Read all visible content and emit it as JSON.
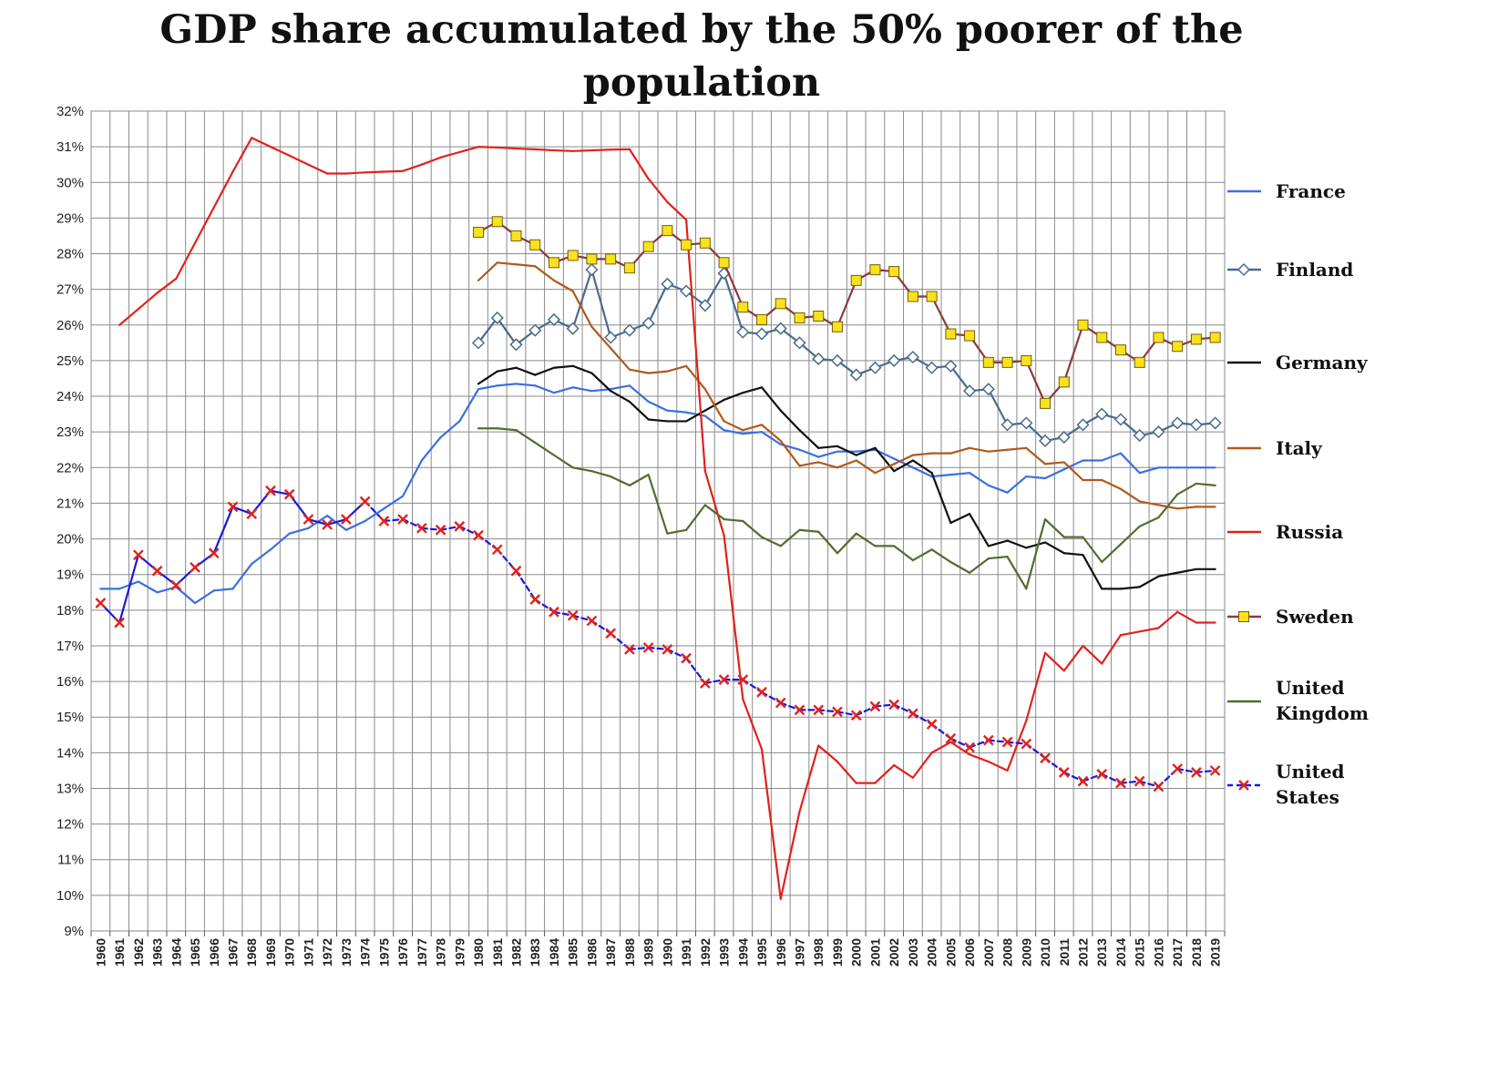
{
  "chart_data": {
    "type": "line",
    "title": "GDP share accumulated by the 50% poorer of the population",
    "xlabel": "",
    "ylabel": "",
    "ylim": [
      9,
      32
    ],
    "y_tick_suffix": "%",
    "x": [
      1960,
      1961,
      1962,
      1963,
      1964,
      1965,
      1966,
      1967,
      1968,
      1969,
      1970,
      1971,
      1972,
      1973,
      1974,
      1975,
      1976,
      1977,
      1978,
      1979,
      1980,
      1981,
      1982,
      1983,
      1984,
      1985,
      1986,
      1987,
      1988,
      1989,
      1990,
      1991,
      1992,
      1993,
      1994,
      1995,
      1996,
      1997,
      1998,
      1999,
      2000,
      2001,
      2002,
      2003,
      2004,
      2005,
      2006,
      2007,
      2008,
      2009,
      2010,
      2011,
      2012,
      2013,
      2014,
      2015,
      2016,
      2017,
      2018,
      2019
    ],
    "grid": true,
    "legend_position": "right",
    "series": [
      {
        "name": "France",
        "color": "#3b6fe0",
        "marker": "none",
        "dashed": false,
        "values": [
          18.6,
          18.6,
          18.8,
          18.5,
          18.65,
          18.2,
          18.55,
          18.6,
          19.3,
          19.7,
          20.15,
          20.3,
          20.65,
          20.25,
          20.5,
          20.85,
          21.2,
          22.2,
          22.85,
          23.3,
          24.2,
          24.3,
          24.35,
          24.3,
          24.1,
          24.25,
          24.15,
          24.2,
          24.3,
          23.85,
          23.6,
          23.55,
          23.45,
          23.05,
          22.95,
          23.0,
          22.65,
          22.5,
          22.3,
          22.45,
          22.45,
          22.5,
          22.25,
          22.0,
          21.75,
          21.8,
          21.85,
          21.5,
          21.3,
          21.75,
          21.7,
          21.95,
          22.2,
          22.2,
          22.4,
          21.85,
          22.0,
          22.0,
          22.0,
          22.0
        ]
      },
      {
        "name": "Finland",
        "color": "#4a6b8c",
        "marker": "diamond",
        "dashed": false,
        "values": [
          null,
          null,
          null,
          null,
          null,
          null,
          null,
          null,
          null,
          null,
          null,
          null,
          null,
          null,
          null,
          null,
          null,
          null,
          null,
          null,
          25.5,
          26.2,
          25.45,
          25.85,
          26.15,
          25.9,
          27.55,
          25.65,
          25.85,
          26.05,
          27.15,
          26.95,
          26.55,
          27.45,
          25.8,
          25.75,
          25.9,
          25.5,
          25.05,
          25.0,
          24.6,
          24.8,
          25.0,
          25.1,
          24.8,
          24.85,
          24.15,
          24.2,
          23.2,
          23.25,
          22.75,
          22.85,
          23.2,
          23.5,
          23.35,
          22.9,
          23.0,
          23.25,
          23.2,
          23.25
        ]
      },
      {
        "name": "Germany",
        "color": "#111111",
        "marker": "none",
        "dashed": false,
        "values": [
          null,
          null,
          null,
          null,
          null,
          null,
          null,
          null,
          null,
          null,
          null,
          null,
          null,
          null,
          null,
          null,
          null,
          null,
          null,
          null,
          24.35,
          24.7,
          24.8,
          24.6,
          24.8,
          24.85,
          24.65,
          24.15,
          23.85,
          23.35,
          23.3,
          23.3,
          23.6,
          23.9,
          24.1,
          24.25,
          23.6,
          23.05,
          22.55,
          22.6,
          22.35,
          22.55,
          21.9,
          22.2,
          21.85,
          20.45,
          20.7,
          19.8,
          19.95,
          19.75,
          19.9,
          19.6,
          19.55,
          18.6,
          18.6,
          18.65,
          18.95,
          19.05,
          19.15,
          19.15
        ]
      },
      {
        "name": "Italy",
        "color": "#b05a1a",
        "marker": "none",
        "dashed": false,
        "values": [
          null,
          null,
          null,
          null,
          null,
          null,
          null,
          null,
          null,
          null,
          null,
          null,
          null,
          null,
          null,
          null,
          null,
          null,
          null,
          null,
          27.25,
          27.75,
          27.7,
          27.65,
          27.25,
          26.95,
          25.95,
          25.35,
          24.75,
          24.65,
          24.7,
          24.85,
          24.2,
          23.3,
          23.05,
          23.2,
          22.75,
          22.05,
          22.15,
          22.0,
          22.2,
          21.85,
          22.1,
          22.35,
          22.4,
          22.4,
          22.55,
          22.45,
          22.5,
          22.55,
          22.1,
          22.15,
          21.65,
          21.65,
          21.4,
          21.05,
          20.95,
          20.85,
          20.9,
          20.9
        ]
      },
      {
        "name": "Russia",
        "color": "#e0221c",
        "marker": "none",
        "dashed": false,
        "values": [
          null,
          26.0,
          26.45,
          26.9,
          27.3,
          28.3,
          29.3,
          30.3,
          31.25,
          31.0,
          30.75,
          30.5,
          30.25,
          30.25,
          30.28,
          30.3,
          30.32,
          30.5,
          30.7,
          30.85,
          31.0,
          30.98,
          30.95,
          30.93,
          30.9,
          30.88,
          30.9,
          30.92,
          30.93,
          30.1,
          29.45,
          28.95,
          21.9,
          20.1,
          15.5,
          14.1,
          9.9,
          12.35,
          14.2,
          13.75,
          13.15,
          13.15,
          13.65,
          13.3,
          14.0,
          14.3,
          13.95,
          13.75,
          13.5,
          14.9,
          16.8,
          16.3,
          17.0,
          16.5,
          17.3,
          17.4,
          17.5,
          17.95,
          17.65,
          17.65
        ]
      },
      {
        "name": "Sweden",
        "color": "#8b3a3a",
        "marker": "square",
        "marker_fill": "#f7e31b",
        "dashed": false,
        "values": [
          null,
          null,
          null,
          null,
          null,
          null,
          null,
          null,
          null,
          null,
          null,
          null,
          null,
          null,
          null,
          null,
          null,
          null,
          null,
          null,
          28.6,
          28.9,
          28.5,
          28.25,
          27.75,
          27.95,
          27.85,
          27.85,
          27.6,
          28.2,
          28.65,
          28.25,
          28.3,
          27.75,
          26.5,
          26.15,
          26.6,
          26.2,
          26.25,
          25.95,
          27.25,
          27.55,
          27.5,
          26.8,
          26.8,
          25.75,
          25.7,
          24.95,
          24.95,
          25.0,
          23.8,
          24.4,
          26.0,
          25.65,
          25.3,
          24.95,
          25.65,
          25.4,
          25.6,
          25.65
        ]
      },
      {
        "name": "United Kingdom",
        "color": "#556b2f",
        "marker": "none",
        "dashed": false,
        "values": [
          null,
          null,
          null,
          null,
          null,
          null,
          null,
          null,
          null,
          null,
          null,
          null,
          null,
          null,
          null,
          null,
          null,
          null,
          null,
          null,
          23.1,
          23.1,
          23.05,
          22.7,
          22.35,
          22.0,
          21.9,
          21.75,
          21.5,
          21.8,
          20.15,
          20.25,
          20.95,
          20.55,
          20.5,
          20.05,
          19.8,
          20.25,
          20.2,
          19.6,
          20.15,
          19.8,
          19.8,
          19.4,
          19.7,
          19.35,
          19.05,
          19.45,
          19.5,
          18.6,
          20.55,
          20.05,
          20.05,
          19.35,
          19.85,
          20.35,
          20.6,
          21.25,
          21.55,
          21.5
        ]
      },
      {
        "name": "United States",
        "color": "#1a1adb",
        "marker": "x",
        "marker_color": "#e0221c",
        "dashed": true,
        "dashed_from": 1974,
        "values": [
          18.2,
          17.65,
          19.55,
          19.1,
          18.7,
          19.2,
          19.6,
          20.9,
          20.7,
          21.35,
          21.25,
          20.55,
          20.4,
          20.55,
          21.05,
          20.5,
          20.55,
          20.3,
          20.25,
          20.35,
          20.1,
          19.7,
          19.1,
          18.3,
          17.95,
          17.85,
          17.7,
          17.35,
          16.9,
          16.95,
          16.9,
          16.65,
          15.95,
          16.05,
          16.05,
          15.7,
          15.4,
          15.2,
          15.2,
          15.15,
          15.05,
          15.3,
          15.35,
          15.1,
          14.8,
          14.4,
          14.15,
          14.35,
          14.3,
          14.25,
          13.85,
          13.45,
          13.2,
          13.4,
          13.15,
          13.2,
          13.05,
          13.55,
          13.45,
          13.5
        ]
      }
    ]
  }
}
